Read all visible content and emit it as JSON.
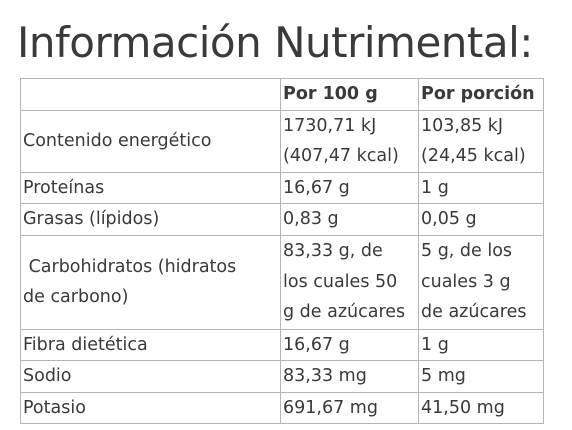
{
  "title": "Información Nutrimental:",
  "table": {
    "headers": [
      "",
      "Por 100 g",
      "Por porción"
    ],
    "rows": [
      {
        "label": "Contenido energético",
        "per100": [
          "1730,71 kJ",
          "(407,47 kcal)"
        ],
        "portion": [
          "103,85 kJ",
          "(24,45 kcal)"
        ]
      },
      {
        "label": "Proteínas",
        "per100": [
          "16,67 g"
        ],
        "portion": [
          "1 g"
        ]
      },
      {
        "label": "Grasas (lípidos)",
        "per100": [
          "0,83 g"
        ],
        "portion": [
          "0,05 g"
        ]
      },
      {
        "label": [
          " Carbohidratos (hidratos",
          "de carbono)"
        ],
        "per100": [
          "83,33 g, de",
          "los cuales 50",
          "g de azúcares"
        ],
        "portion": [
          "5 g, de los",
          "cuales 3 g",
          "de azúcares"
        ]
      },
      {
        "label": "Fibra dietética",
        "per100": [
          "16,67 g"
        ],
        "portion": [
          "1 g"
        ]
      },
      {
        "label": "Sodio",
        "per100": [
          "83,33 mg"
        ],
        "portion": [
          "5 mg"
        ]
      },
      {
        "label": "Potasio",
        "per100": [
          "691,67 mg"
        ],
        "portion": [
          "41,50 mg"
        ]
      }
    ]
  }
}
